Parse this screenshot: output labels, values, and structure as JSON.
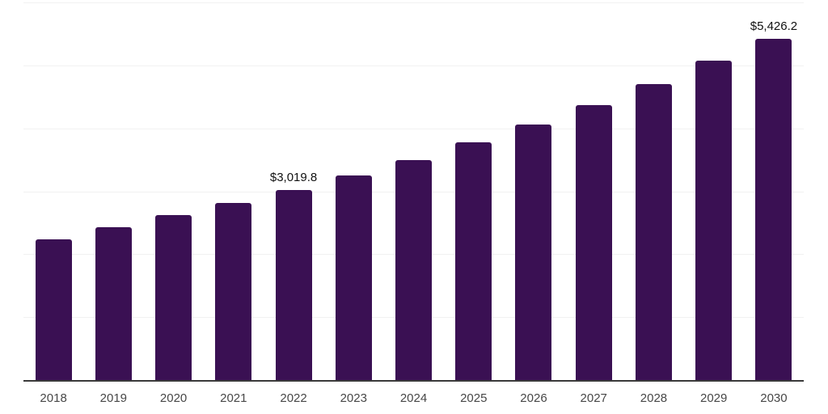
{
  "chart_data": {
    "type": "bar",
    "title": "",
    "xlabel": "",
    "ylabel": "",
    "categories": [
      "2018",
      "2019",
      "2020",
      "2021",
      "2022",
      "2023",
      "2024",
      "2025",
      "2026",
      "2027",
      "2028",
      "2029",
      "2030"
    ],
    "values": [
      2240,
      2430,
      2620,
      2820,
      3019.8,
      3250,
      3500,
      3780,
      4060,
      4370,
      4700,
      5070,
      5426.2
    ],
    "value_labels": [
      null,
      null,
      null,
      null,
      "$3,019.8",
      null,
      null,
      null,
      null,
      null,
      null,
      null,
      "$5,426.2"
    ],
    "ylim": [
      0,
      6000
    ],
    "gridline_values": [
      1000,
      2000,
      3000,
      4000,
      5000,
      6000
    ],
    "grid": true,
    "legend": false,
    "y_tick_labels_visible": false
  },
  "style": {
    "bar_color": "#3a1053",
    "grid_color": "#f1f1f1",
    "axis_color": "#3a3a3a",
    "tick_label_color": "#474747",
    "value_label_color": "#111111",
    "background": "#ffffff"
  }
}
